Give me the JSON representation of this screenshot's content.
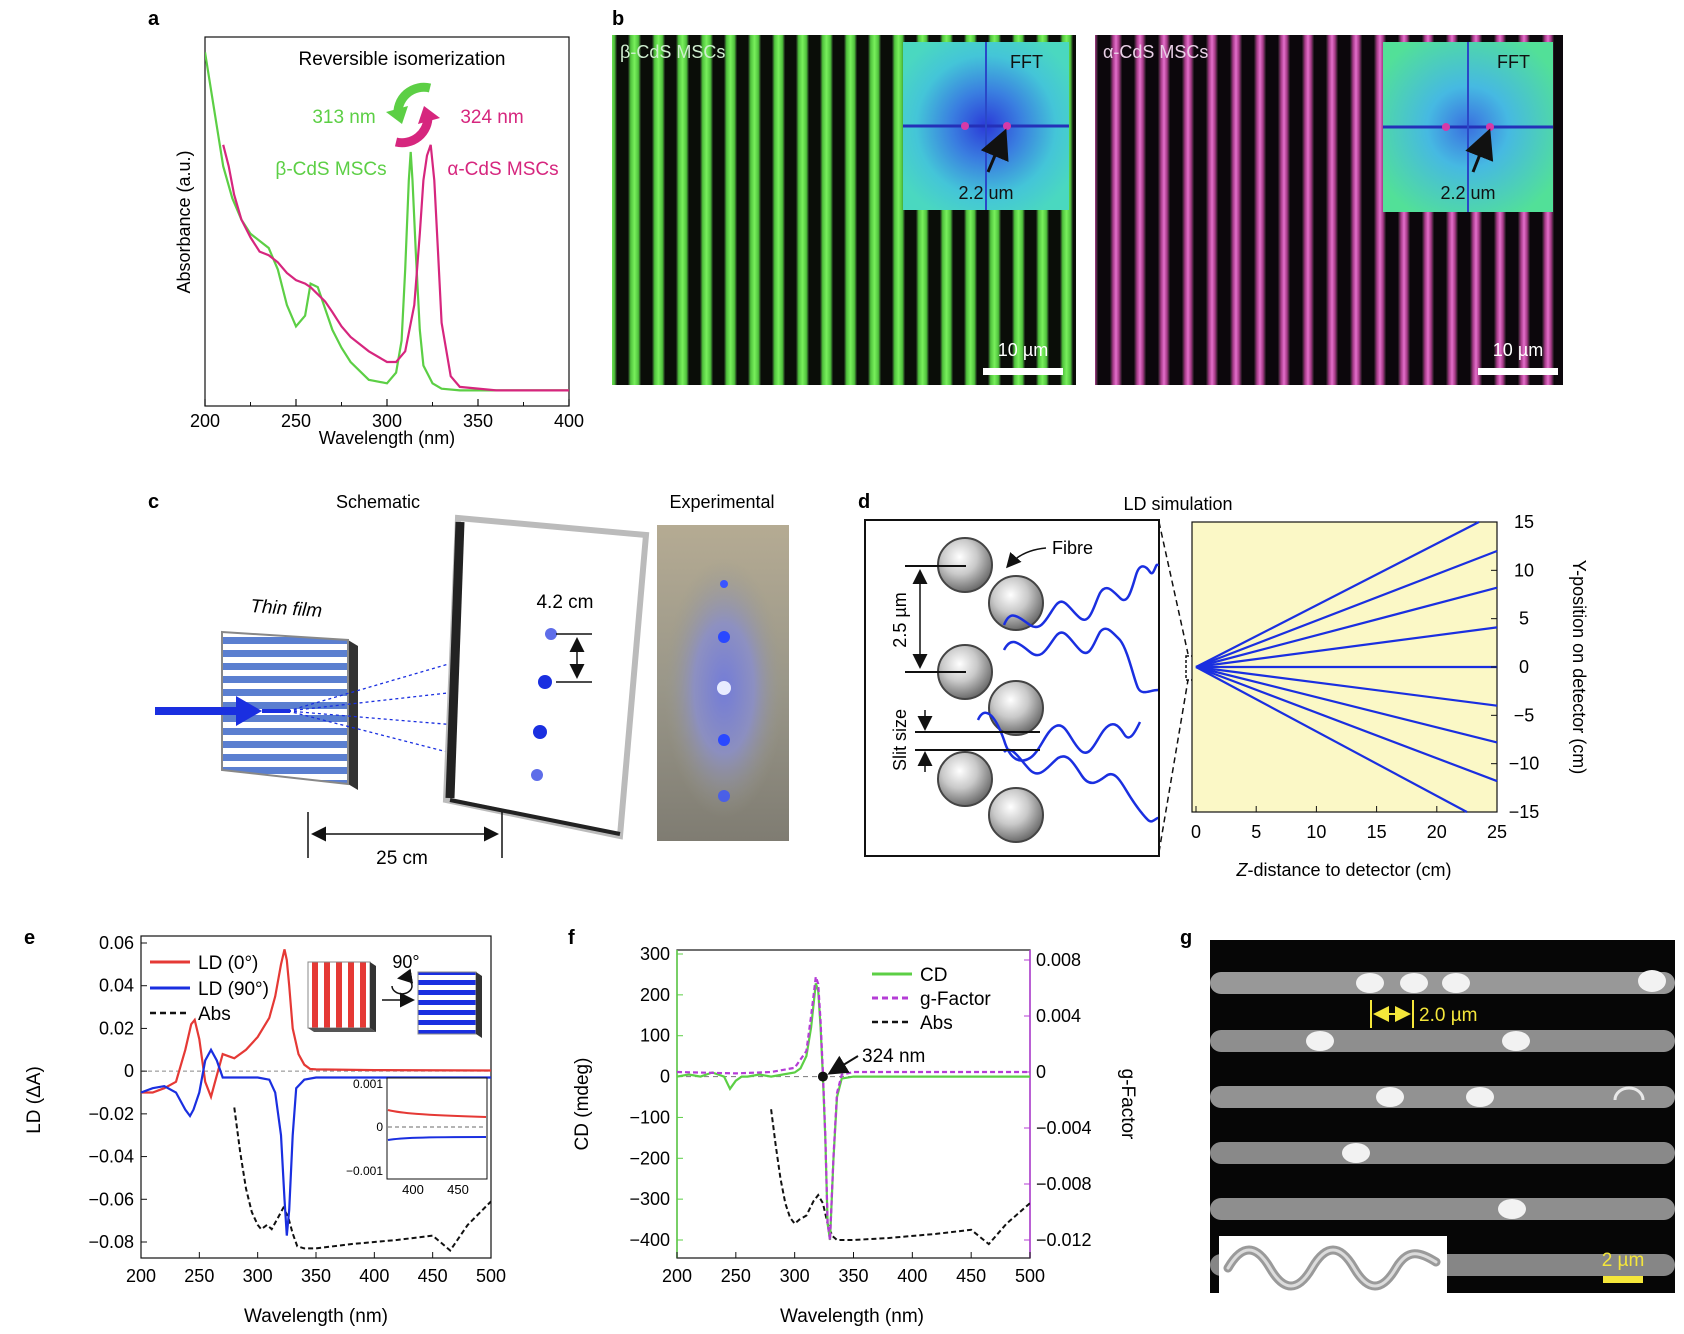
{
  "colors": {
    "green": "#5ccf45",
    "magenta": "#d6267e",
    "red": "#e53935",
    "blue": "#1a2fe0",
    "black": "#111111",
    "purple": "#b43cd6",
    "yellow": "#f4e63a",
    "tint": "#fbf8c6"
  },
  "panels": {
    "a": "a",
    "b": "b",
    "c": "c",
    "d": "d",
    "e": "e",
    "f": "f",
    "g": "g"
  },
  "a": {
    "title": "Reversible isomerization",
    "left_wl": "313 nm",
    "right_wl": "324 nm",
    "beta_label": "β-CdS MSCs",
    "alpha_label": "α-CdS MSCs",
    "ylabel": "Absorbance (a.u.)",
    "xlabel": "Wavelength (nm)",
    "xticks": [
      "200",
      "250",
      "300",
      "350",
      "400"
    ],
    "chart_data": {
      "type": "line",
      "title": "Reversible isomerization",
      "xlabel": "Wavelength (nm)",
      "ylabel": "Absorbance (a.u.)",
      "xlim": [
        200,
        400
      ],
      "ylim": [
        0,
        1
      ],
      "series": [
        {
          "name": "β-CdS MSCs",
          "x": [
            200,
            205,
            210,
            215,
            220,
            225,
            230,
            235,
            240,
            245,
            250,
            255,
            258,
            262,
            266,
            270,
            275,
            280,
            290,
            300,
            305,
            308,
            310,
            312,
            313,
            314,
            316,
            318,
            320,
            325,
            330,
            340,
            360,
            400
          ],
          "y": [
            0.96,
            0.8,
            0.64,
            0.55,
            0.49,
            0.45,
            0.43,
            0.41,
            0.35,
            0.25,
            0.19,
            0.22,
            0.31,
            0.3,
            0.24,
            0.18,
            0.13,
            0.09,
            0.04,
            0.03,
            0.06,
            0.15,
            0.35,
            0.6,
            0.68,
            0.6,
            0.38,
            0.18,
            0.08,
            0.03,
            0.015,
            0.01,
            0.01,
            0.01
          ]
        },
        {
          "name": "α-CdS MSCs",
          "x": [
            210,
            213,
            216,
            220,
            225,
            230,
            235,
            240,
            245,
            250,
            255,
            258,
            262,
            266,
            270,
            275,
            280,
            290,
            300,
            305,
            310,
            315,
            318,
            320,
            322,
            324,
            326,
            328,
            330,
            335,
            340,
            360,
            400
          ],
          "y": [
            0.7,
            0.64,
            0.56,
            0.49,
            0.44,
            0.4,
            0.39,
            0.37,
            0.34,
            0.32,
            0.31,
            0.3,
            0.28,
            0.26,
            0.23,
            0.19,
            0.16,
            0.12,
            0.09,
            0.09,
            0.12,
            0.25,
            0.45,
            0.6,
            0.67,
            0.7,
            0.6,
            0.4,
            0.2,
            0.05,
            0.02,
            0.01,
            0.01
          ]
        }
      ]
    }
  },
  "b": {
    "left_label": "β-CdS MSCs",
    "right_label": "α-CdS MSCs",
    "fft": "FFT",
    "period": "2.2 um",
    "scale": "10 µm"
  },
  "c": {
    "schematic": "Schematic",
    "experimental": "Experimental",
    "film": "Thin film",
    "spacing": "4.2 cm",
    "distance": "25 cm"
  },
  "d": {
    "title": "LD simulation",
    "fibre": "Fibre",
    "pitch": "2.5 µm",
    "slit": "Slit size",
    "xlabel_italic": "Z",
    "xlabel_rest": "-distance to detector (cm)",
    "ylabel": "Y-position on detector (cm)",
    "xticks": [
      "0",
      "5",
      "10",
      "15",
      "20",
      "25"
    ],
    "yticks": [
      "15",
      "10",
      "5",
      "0",
      "−5",
      "−10",
      "−15"
    ],
    "chart_data": {
      "type": "line",
      "xlabel": "Z-distance to detector (cm)",
      "ylabel": "Y-position on detector (cm)",
      "xlim": [
        0,
        25
      ],
      "ylim": [
        -15,
        15
      ],
      "rays_end_y": [
        15,
        12,
        8.2,
        4.1,
        0,
        -4,
        -7.8,
        -11.8,
        -15
      ],
      "rays_end_z": [
        23.5,
        25,
        25,
        25,
        25,
        25,
        25,
        25,
        22.5
      ]
    }
  },
  "e": {
    "ylabel": "LD (ΔA)",
    "xlabel": "Wavelength (nm)",
    "legend": [
      "LD (0°)",
      "LD (90°)",
      "Abs"
    ],
    "rotation": "90°",
    "yticks": [
      "0.06",
      "0.04",
      "0.02",
      "0",
      "−0.02",
      "−0.04",
      "−0.06",
      "−0.08"
    ],
    "xticks": [
      "200",
      "250",
      "300",
      "350",
      "400",
      "450",
      "500"
    ],
    "inset_yticks": [
      "0.001",
      "0",
      "−0.001"
    ],
    "inset_xticks": [
      "400",
      "450"
    ],
    "chart_data": {
      "type": "line",
      "xlabel": "Wavelength (nm)",
      "ylabel": "LD (ΔA)",
      "xlim": [
        200,
        500
      ],
      "ylim": [
        -0.09,
        0.065
      ],
      "series": [
        {
          "name": "LD (0°)",
          "x": [
            200,
            210,
            220,
            230,
            238,
            243,
            246,
            250,
            255,
            260,
            265,
            270,
            275,
            280,
            290,
            300,
            310,
            315,
            320,
            323,
            325,
            327,
            330,
            335,
            340,
            345,
            350,
            400,
            500
          ],
          "y": [
            -0.01,
            -0.01,
            -0.008,
            -0.005,
            0.01,
            0.022,
            0.024,
            0.015,
            -0.005,
            -0.012,
            -0.002,
            0.008,
            0.007,
            0.006,
            0.01,
            0.016,
            0.025,
            0.035,
            0.05,
            0.057,
            0.052,
            0.04,
            0.02,
            0.008,
            0.003,
            0.001,
            0.0008,
            0.0005,
            0.0003
          ]
        },
        {
          "name": "LD (90°)",
          "x": [
            200,
            210,
            220,
            230,
            238,
            242,
            245,
            250,
            255,
            260,
            265,
            270,
            280,
            290,
            300,
            310,
            315,
            320,
            323,
            325,
            327,
            330,
            333,
            340,
            350,
            400,
            500
          ],
          "y": [
            -0.01,
            -0.008,
            -0.007,
            -0.01,
            -0.018,
            -0.021,
            -0.018,
            -0.01,
            0.005,
            0.01,
            0.005,
            -0.003,
            -0.003,
            -0.003,
            -0.003,
            -0.004,
            -0.01,
            -0.03,
            -0.06,
            -0.077,
            -0.065,
            -0.03,
            -0.008,
            -0.004,
            -0.003,
            -0.003,
            -0.003
          ]
        },
        {
          "name": "Abs",
          "x": [
            280,
            285,
            290,
            295,
            300,
            303,
            308,
            312,
            318,
            322,
            326,
            330,
            334,
            340,
            350,
            380,
            420,
            450,
            465,
            480,
            500
          ],
          "y": [
            -0.017,
            -0.038,
            -0.055,
            -0.066,
            -0.072,
            -0.074,
            -0.072,
            -0.074,
            -0.068,
            -0.064,
            -0.068,
            -0.076,
            -0.082,
            -0.083,
            -0.083,
            -0.081,
            -0.079,
            -0.077,
            -0.084,
            -0.072,
            -0.061
          ]
        }
      ]
    }
  },
  "f": {
    "ylabel": "CD (mdeg)",
    "y2label": "g-Factor",
    "xlabel": "Wavelength (nm)",
    "legend": [
      "CD",
      "g-Factor",
      "Abs"
    ],
    "annotation": "324 nm",
    "yticks": [
      "300",
      "200",
      "100",
      "0",
      "−100",
      "−200",
      "−300",
      "−400"
    ],
    "y2ticks": [
      "0.008",
      "0.004",
      "0",
      "−0.004",
      "−0.008",
      "−0.012"
    ],
    "xticks": [
      "200",
      "250",
      "300",
      "350",
      "400",
      "450",
      "500"
    ],
    "chart_data": {
      "type": "line",
      "xlabel": "Wavelength (nm)",
      "ylabel": "CD (mdeg)",
      "y2label": "g-Factor",
      "xlim": [
        200,
        500
      ],
      "ylim": [
        -420,
        300
      ],
      "y2lim": [
        -0.0126,
        0.009
      ],
      "series": [
        {
          "name": "CD",
          "axis": "left",
          "x": [
            200,
            210,
            220,
            230,
            240,
            245,
            250,
            255,
            260,
            270,
            280,
            290,
            300,
            305,
            310,
            314,
            318,
            320,
            322,
            324,
            326,
            328,
            330,
            333,
            336,
            340,
            350,
            400,
            500
          ],
          "y": [
            0,
            5,
            0,
            10,
            0,
            -30,
            -10,
            0,
            0,
            5,
            0,
            5,
            10,
            20,
            50,
            120,
            228,
            210,
            120,
            0,
            -150,
            -360,
            -400,
            -200,
            -50,
            -5,
            0,
            0,
            0
          ]
        },
        {
          "name": "g-Factor",
          "axis": "right",
          "x": [
            200,
            250,
            280,
            300,
            310,
            314,
            318,
            320,
            322,
            324,
            326,
            328,
            330,
            333,
            336,
            340,
            350,
            500
          ],
          "y": [
            0,
            -0.0001,
            0,
            0.0003,
            0.0015,
            0.004,
            0.0068,
            0.0063,
            0.0036,
            0,
            -0.0045,
            -0.0108,
            -0.012,
            -0.006,
            -0.0015,
            -0.0002,
            0,
            0
          ]
        },
        {
          "name": "Abs",
          "axis": "left",
          "x": [
            280,
            284,
            288,
            292,
            296,
            300,
            304,
            310,
            316,
            320,
            324,
            328,
            332,
            336,
            340,
            350,
            380,
            420,
            450,
            465,
            480,
            500
          ],
          "y": [
            -80,
            -170,
            -250,
            -310,
            -345,
            -360,
            -350,
            -340,
            -305,
            -290,
            -310,
            -360,
            -390,
            -400,
            -400,
            -400,
            -395,
            -385,
            -375,
            -410,
            -360,
            -310
          ]
        }
      ]
    }
  },
  "g": {
    "spacing": "2.0 µm",
    "scale": "2 µm"
  }
}
